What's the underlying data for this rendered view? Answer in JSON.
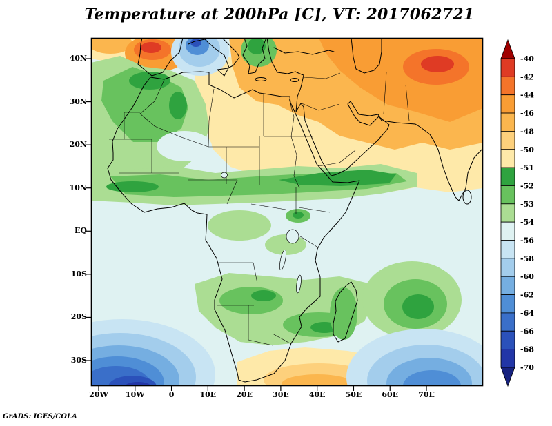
{
  "title": "Temperature at 200hPa [C], VT: 2017062721",
  "credit": "GrADS: IGES/COLA",
  "chart_data": {
    "type": "heatmap",
    "title": "Temperature at 200hPa [C], VT: 2017062721",
    "variable": "Temperature",
    "pressure_level": "200hPa",
    "units": "C",
    "valid_time": "2017062721",
    "region": "Africa, Middle East and surrounding oceans",
    "x_ticks": [
      "20W",
      "10W",
      "0",
      "10E",
      "20E",
      "30E",
      "40E",
      "50E",
      "60E",
      "70E"
    ],
    "y_ticks": [
      "40N",
      "30N",
      "20N",
      "10N",
      "EQ",
      "10S",
      "20S",
      "30S"
    ],
    "lon_range_deg": [
      -22,
      85
    ],
    "lat_range_deg": [
      -36,
      45
    ],
    "grid": false,
    "legend_position": "right",
    "colorbar": {
      "levels": [
        -40,
        -42,
        -44,
        -46,
        -48,
        -50,
        -51,
        -52,
        -53,
        -54,
        -56,
        -58,
        -60,
        -62,
        -64,
        -66,
        -68,
        -70
      ],
      "colors": [
        "#df3b24",
        "#f4742a",
        "#f99d34",
        "#fbb64e",
        "#fdd07c",
        "#fee9a9",
        "#2fa33f",
        "#68c25e",
        "#abdd93",
        "#dff2f2",
        "#c8e4f3",
        "#a3cdec",
        "#75aee1",
        "#4f8ed6",
        "#3a6fc9",
        "#2b51ba",
        "#2236a7"
      ],
      "above_color": "#a00000",
      "below_color": "#17227f"
    },
    "field_notes": {
      "warmest_above_-42C": [
        "Iberia",
        "Central Asia / NE of Caspian"
      ],
      "warm_band_-44_to_-51C": [
        "North Africa (Libya, Egypt)",
        "Middle East",
        "south of South Africa"
      ],
      "green_band_-51_to_-54C": [
        "NW Africa",
        "Sahel near 10N-15N",
        "southern Africa 15S-25S",
        "east of Madagascar"
      ],
      "cold_below_-56C": [
        "SW Atlantic corner",
        "SE Indian Ocean corner",
        "central Mediterranean spot"
      ]
    }
  }
}
